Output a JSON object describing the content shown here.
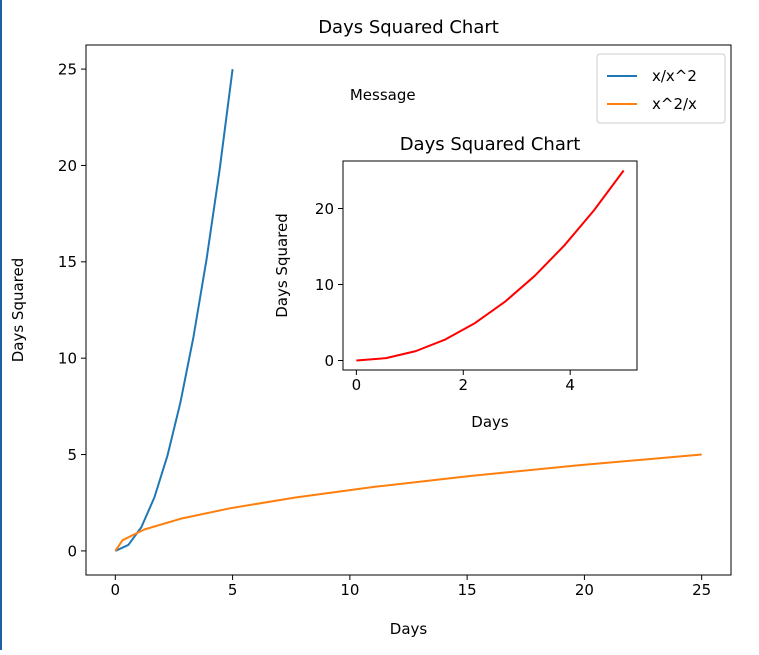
{
  "chart_data": [
    {
      "type": "line",
      "title": "Days Squared Chart",
      "xlabel": "Days",
      "ylabel": "Days Squared",
      "xlim": [
        -1.25,
        26.25
      ],
      "ylim": [
        -1.25,
        26.25
      ],
      "xticks": [
        0,
        5,
        10,
        15,
        20,
        25
      ],
      "yticks": [
        0,
        5,
        10,
        15,
        20,
        25
      ],
      "legend": "top-right",
      "annotation": "Message",
      "series": [
        {
          "name": "x/x^2",
          "color": "#1f77b4",
          "x": [
            0,
            0.5556,
            1.1111,
            1.6667,
            2.2222,
            2.7778,
            3.3333,
            3.8889,
            4.4444,
            5
          ],
          "y": [
            0,
            0.3086,
            1.2346,
            2.7778,
            4.9383,
            7.716,
            11.1111,
            15.1235,
            19.7531,
            25
          ]
        },
        {
          "name": "x^2/x",
          "color": "#ff7f0e",
          "x": [
            0,
            0.3086,
            1.2346,
            2.7778,
            4.9383,
            7.716,
            11.1111,
            15.1235,
            19.7531,
            25
          ],
          "y": [
            0,
            0.5556,
            1.1111,
            1.6667,
            2.2222,
            2.7778,
            3.3333,
            3.8889,
            4.4444,
            5
          ]
        }
      ]
    },
    {
      "type": "line",
      "title": "Days Squared Chart",
      "xlabel": "Days",
      "ylabel": "Days Squared",
      "xlim": [
        -0.25,
        5.25
      ],
      "ylim": [
        -1.25,
        26.25
      ],
      "xticks": [
        0,
        2,
        4
      ],
      "yticks": [
        0,
        10,
        20
      ],
      "series": [
        {
          "color": "#ff0000",
          "x": [
            0,
            0.5556,
            1.1111,
            1.6667,
            2.2222,
            2.7778,
            3.3333,
            3.8889,
            4.4444,
            5
          ],
          "y": [
            0,
            0.3086,
            1.2346,
            2.7778,
            4.9383,
            7.716,
            11.1111,
            15.1235,
            19.7531,
            25
          ]
        }
      ]
    }
  ]
}
